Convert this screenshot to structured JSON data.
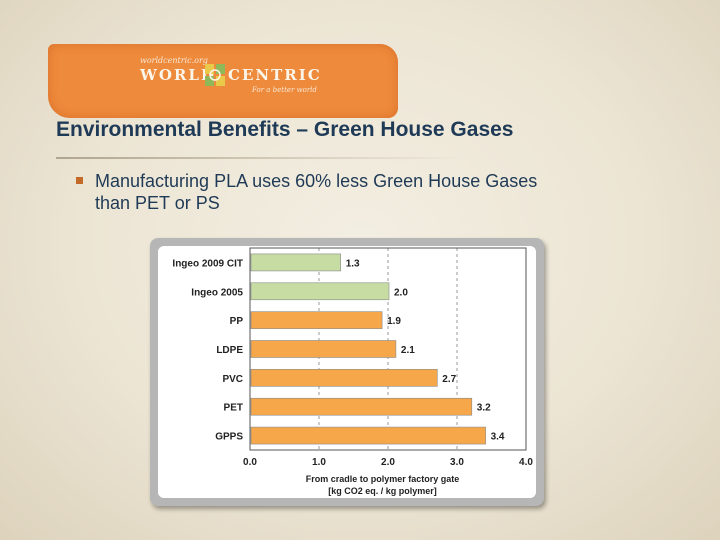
{
  "logo": {
    "small_text": "worldcentric.org",
    "word_left": "WORLD",
    "word_right": "CENTRIC",
    "tagline": "For a better world"
  },
  "slide": {
    "title": "Environmental Benefits – Green House Gases",
    "bullet_line1": "Manufacturing PLA uses 60% less Green House Gases",
    "bullet_line2": "than PET or PS"
  },
  "colors": {
    "title_text": "#1f3a56",
    "logo_orange": "#ee8a3c",
    "bar_green": "#c6dca3",
    "bar_orange": "#f6a74a",
    "bullet_marker": "#c46a28"
  },
  "chart_data": {
    "type": "bar",
    "orientation": "horizontal",
    "categories": [
      "Ingeo 2009 CIT",
      "Ingeo 2005",
      "PP",
      "LDPE",
      "PVC",
      "PET",
      "GPPS"
    ],
    "values": [
      1.3,
      2.0,
      1.9,
      2.1,
      2.7,
      3.2,
      3.4
    ],
    "value_labels": [
      "1.3",
      "2.0",
      "1.9",
      "2.1",
      "2.7",
      "3.2",
      "3.4"
    ],
    "bar_colors": [
      "#c6dca3",
      "#c6dca3",
      "#f6a74a",
      "#f6a74a",
      "#f6a74a",
      "#f6a74a",
      "#f6a74a"
    ],
    "xlim": [
      0,
      4
    ],
    "xticks": [
      "0.0",
      "1.0",
      "2.0",
      "3.0",
      "4.0"
    ],
    "xlabel_line1": "From cradle to polymer factory gate",
    "xlabel_line2": "[kg CO2 eq. / kg polymer]",
    "grid": "vertical dashed",
    "legend": "none"
  }
}
